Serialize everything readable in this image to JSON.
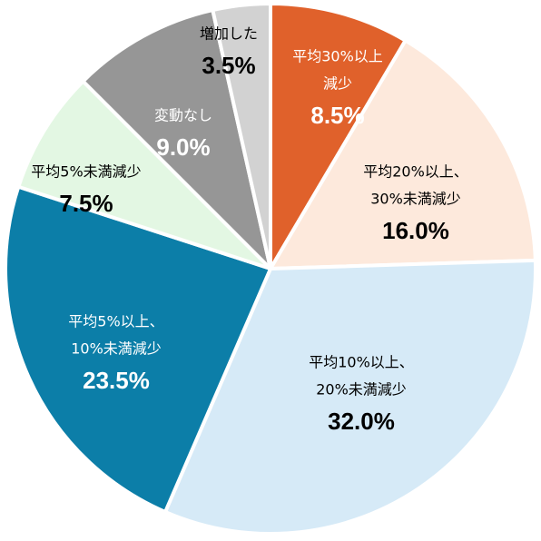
{
  "chart_data": {
    "type": "pie",
    "start": "top",
    "direction": "clockwise",
    "slices": [
      {
        "label": [
          "平均30%以上",
          "減少"
        ],
        "value_text": "8.5%",
        "value": 8.5,
        "color": "#e0612b",
        "text_color": "#ffffff"
      },
      {
        "label": [
          "平均20%以上、",
          "30%未満減少"
        ],
        "value_text": "16.0%",
        "value": 16.0,
        "color": "#fde9dc",
        "text_color": "#000000"
      },
      {
        "label": [
          "平均10%以上、",
          "20%未満減少"
        ],
        "value_text": "32.0%",
        "value": 32.0,
        "color": "#d6eaf7",
        "text_color": "#000000"
      },
      {
        "label": [
          "平均5%以上、",
          "10%未満減少"
        ],
        "value_text": "23.5%",
        "value": 23.5,
        "color": "#0c7ea8",
        "text_color": "#ffffff"
      },
      {
        "label": [
          "平均5%未満減少"
        ],
        "value_text": "7.5%",
        "value": 7.5,
        "color": "#e3f7e3",
        "text_color": "#000000"
      },
      {
        "label": [
          "変動なし"
        ],
        "value_text": "9.0%",
        "value": 9.0,
        "color": "#969696",
        "text_color": "#ffffff"
      },
      {
        "label": [
          "増加した"
        ],
        "value_text": "3.5%",
        "value": 3.5,
        "color": "#d2d2d2",
        "text_color": "#000000"
      }
    ]
  }
}
